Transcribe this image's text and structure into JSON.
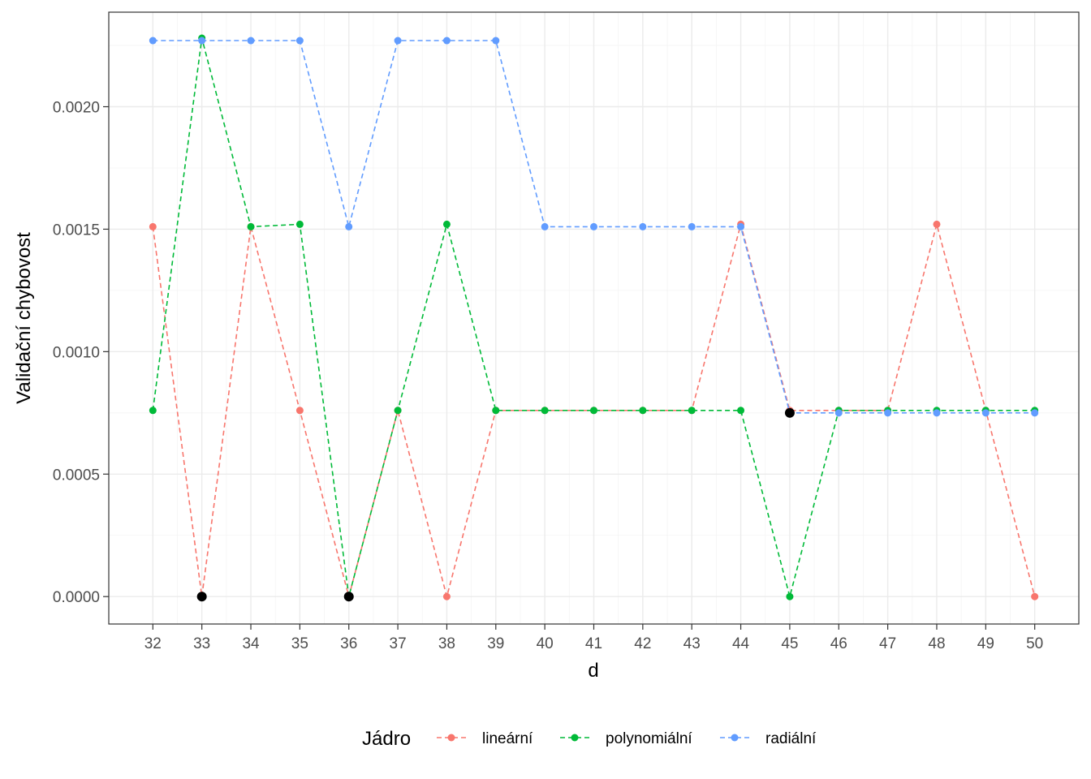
{
  "chart_data": {
    "type": "line",
    "xlabel": "d",
    "ylabel": "Validační chybovost",
    "x": [
      32,
      33,
      34,
      35,
      36,
      37,
      38,
      39,
      40,
      41,
      42,
      43,
      44,
      45,
      46,
      47,
      48,
      49,
      50
    ],
    "x_ticks": [
      "32",
      "33",
      "34",
      "35",
      "36",
      "37",
      "38",
      "39",
      "40",
      "41",
      "42",
      "43",
      "44",
      "45",
      "46",
      "47",
      "48",
      "49",
      "50"
    ],
    "xlim": [
      31.1,
      50.9
    ],
    "y_ticks": [
      "0.0000",
      "0.0005",
      "0.0010",
      "0.0015",
      "0.0020"
    ],
    "y_tick_values": [
      0,
      0.0005,
      0.001,
      0.0015,
      0.002
    ],
    "ylim": [
      -0.000112,
      0.002386
    ],
    "grid": true,
    "line_style": "dashed",
    "legend": {
      "title": "Jádro",
      "position": "bottom"
    },
    "series": [
      {
        "name": "lineární",
        "color": "#F8766D",
        "values": [
          0.00151,
          0,
          0.00151,
          0.00076,
          0,
          0.00076,
          0,
          0.00076,
          0.00076,
          0.00076,
          0.00076,
          0.00076,
          0.00152,
          0.00076,
          0.00076,
          0.00076,
          0.00152,
          0.00076,
          0
        ]
      },
      {
        "name": "polynomiální",
        "color": "#00BA38",
        "values": [
          0.00076,
          0.00228,
          0.00151,
          0.00152,
          0,
          0.00076,
          0.00152,
          0.00076,
          0.00076,
          0.00076,
          0.00076,
          0.00076,
          0.00076,
          0,
          0.00076,
          0.00076,
          0.00076,
          0.00076,
          0.00076
        ]
      },
      {
        "name": "radiální",
        "color": "#619CFF",
        "values": [
          0.00227,
          0.00227,
          0.00227,
          0.00227,
          0.00151,
          0.00227,
          0.00227,
          0.00227,
          0.00151,
          0.00151,
          0.00151,
          0.00151,
          0.00151,
          0.00075,
          0.00075,
          0.00075,
          0.00075,
          0.00075,
          0.00075
        ]
      }
    ],
    "highlighted_points": {
      "color": "#000000",
      "points": [
        {
          "x": 33,
          "y": 0
        },
        {
          "x": 36,
          "y": 0
        },
        {
          "x": 45,
          "y": 0.00075
        }
      ]
    }
  }
}
